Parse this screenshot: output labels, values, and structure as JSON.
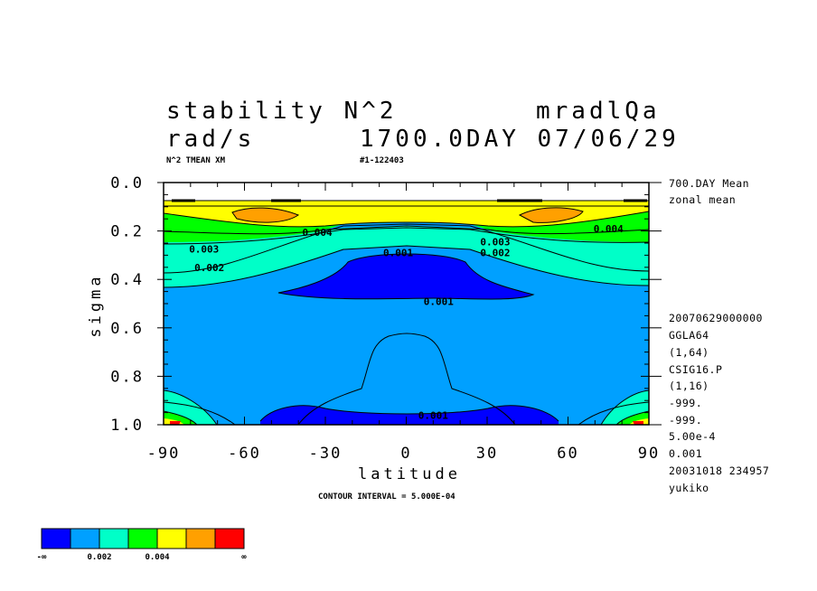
{
  "header": {
    "title_left": "stability N^2",
    "title_right": "mradlQa",
    "units": "rad/s",
    "time": "1700.0DAY 07/06/29",
    "var_desc": "N^2 TMEAN XM",
    "run_id": "#1-122403"
  },
  "side_info": {
    "top": [
      "700.DAY Mean",
      "zonal mean"
    ],
    "bottom": [
      "20070629000000",
      "GGLA64",
      "(1,64)",
      "CSIG16.P",
      "(1,16)",
      "-999.",
      "-999.",
      "5.00e-4",
      "0.001",
      "20031018 234957",
      "yukiko"
    ]
  },
  "footer": {
    "contour_interval": "CONTOUR INTERVAL = 5.000E-04"
  },
  "chart_data": {
    "type": "contour",
    "title": "stability N^2",
    "xlabel": "latitude",
    "ylabel": "sigma",
    "xlim": [
      -90,
      90
    ],
    "ylim": [
      1.0,
      0.0
    ],
    "y_inverted": true,
    "x_ticks": [
      "-90",
      "-60",
      "-30",
      "0",
      "30",
      "60",
      "90"
    ],
    "x_tick_values": [
      -90,
      -60,
      -30,
      0,
      30,
      60,
      90
    ],
    "y_ticks": [
      "0.0",
      "0.2",
      "0.4",
      "0.6",
      "0.8",
      "1.0"
    ],
    "y_tick_values": [
      0.0,
      0.2,
      0.4,
      0.6,
      0.8,
      1.0
    ],
    "contour_interval": 0.0005,
    "contour_labels": [
      {
        "text": "0.004",
        "lat": -33,
        "sigma": 0.205
      },
      {
        "text": "0.004",
        "lat": 75,
        "sigma": 0.19
      },
      {
        "text": "0.003",
        "lat": -75,
        "sigma": 0.275
      },
      {
        "text": "0.003",
        "lat": 33,
        "sigma": 0.245
      },
      {
        "text": "0.002",
        "lat": -73,
        "sigma": 0.35
      },
      {
        "text": "0.002",
        "lat": 33,
        "sigma": 0.29
      },
      {
        "text": "0.001",
        "lat": -3,
        "sigma": 0.29
      },
      {
        "text": "0.001",
        "lat": 12,
        "sigma": 0.49
      },
      {
        "text": "0.001",
        "lat": 10,
        "sigma": 0.96
      }
    ],
    "colorbar": {
      "colors": [
        "#0000ff",
        "#00a0ff",
        "#00ffc8",
        "#00ff00",
        "#ffff00",
        "#ffa000",
        "#ff0000"
      ],
      "labels": [
        "-∞",
        "0.002",
        "0.004",
        "∞"
      ]
    },
    "grid": false,
    "legend": "colorbar bottom-left"
  }
}
